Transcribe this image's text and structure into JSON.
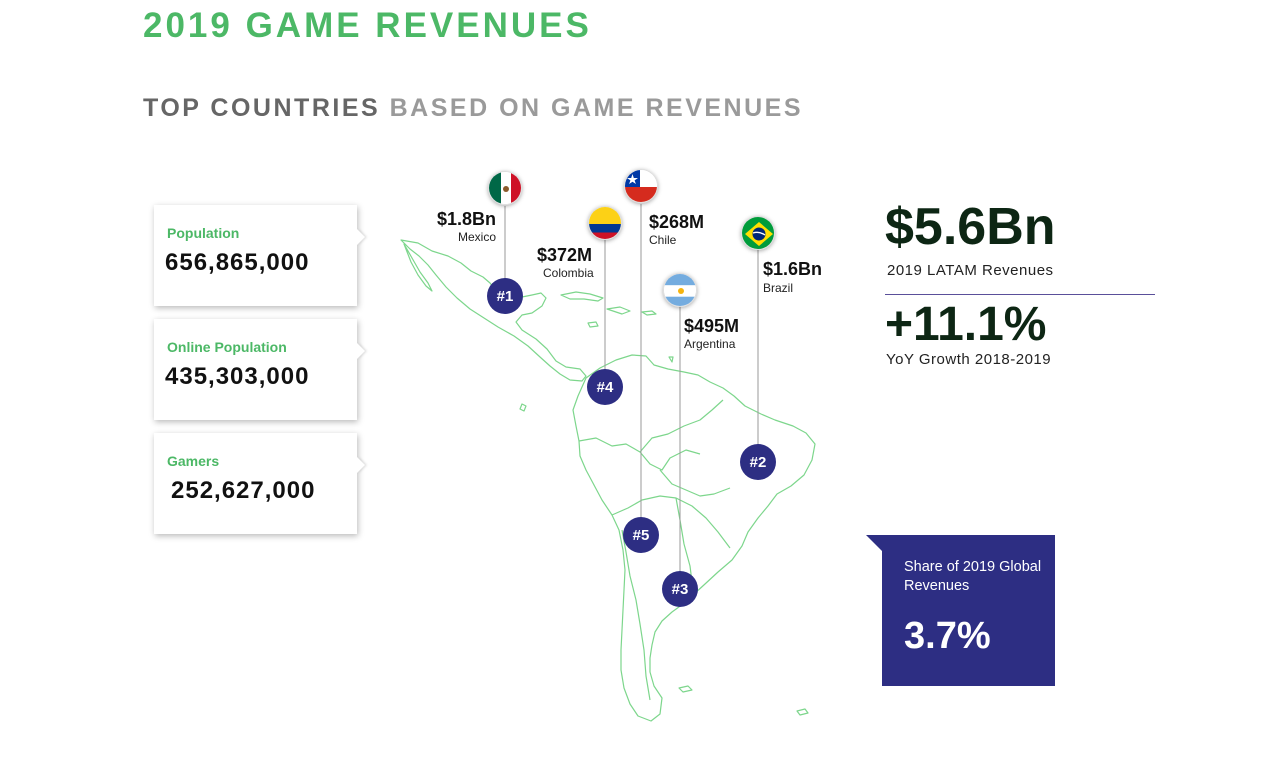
{
  "header": {
    "title": "2019 GAME REVENUES",
    "subtitle_strong": "TOP COUNTRIES",
    "subtitle_light": "BASED ON GAME REVENUES"
  },
  "stats": [
    {
      "label": "Population",
      "value": "656,865,000"
    },
    {
      "label": "Online Population",
      "value": "435,303,000"
    },
    {
      "label": "Gamers",
      "value": "252,627,000"
    }
  ],
  "countries": [
    {
      "country": "Mexico",
      "revenue": "$1.8Bn",
      "rank": "#1",
      "flag_icon": "mexico-flag-icon"
    },
    {
      "country": "Brazil",
      "revenue": "$1.6Bn",
      "rank": "#2",
      "flag_icon": "brazil-flag-icon"
    },
    {
      "country": "Argentina",
      "revenue": "$495M",
      "rank": "#3",
      "flag_icon": "argentina-flag-icon"
    },
    {
      "country": "Colombia",
      "revenue": "$372M",
      "rank": "#4",
      "flag_icon": "colombia-flag-icon"
    },
    {
      "country": "Chile",
      "revenue": "$268M",
      "rank": "#5",
      "flag_icon": "chile-flag-icon"
    }
  ],
  "summary": {
    "total_value": "$5.6Bn",
    "total_caption": "2019 LATAM Revenues",
    "growth_value": "+11.1%",
    "growth_caption": "YoY Growth 2018-2019"
  },
  "share": {
    "caption": "Share of 2019 Global Revenues",
    "value": "3.7%"
  },
  "colors": {
    "accent_green": "#4cb866",
    "rank_blue": "#2d2e83",
    "map_outline": "#7dd68c",
    "dark_green": "#0d2614"
  }
}
